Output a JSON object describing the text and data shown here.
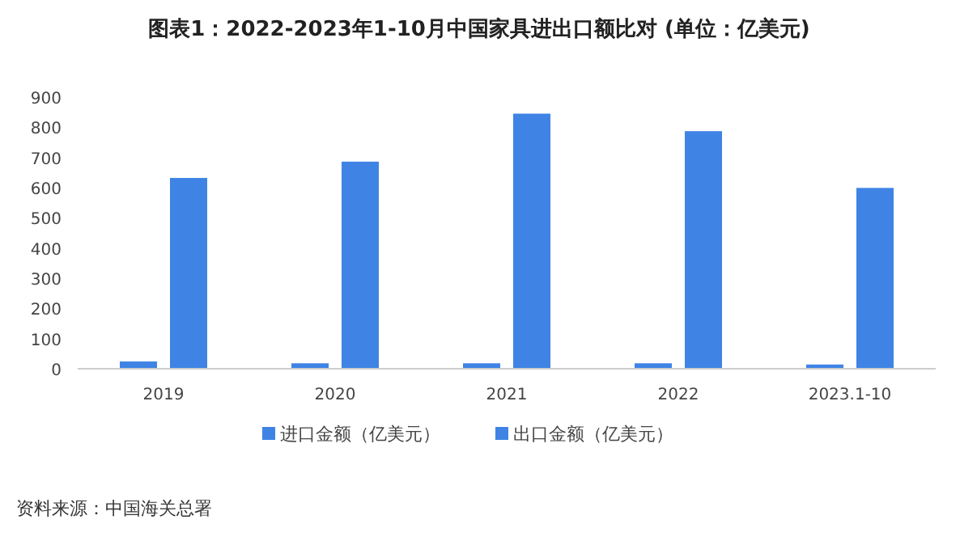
{
  "chart_data": {
    "type": "bar",
    "title": "图表1：2022-2023年1-10月中国家具进出口额比对 (单位：亿美元)",
    "categories": [
      "2019",
      "2020",
      "2021",
      "2022",
      "2023.1-10"
    ],
    "series": [
      {
        "name": "进口金额（亿美元）",
        "color": "#3f84e5",
        "values": [
          24,
          18,
          18,
          18,
          14
        ]
      },
      {
        "name": "出口金额（亿美元）",
        "color": "#3f84e5",
        "values": [
          632,
          686,
          845,
          787,
          599
        ]
      }
    ],
    "ylim": [
      0,
      900
    ],
    "yticks": [
      0,
      100,
      200,
      300,
      400,
      500,
      600,
      700,
      800,
      900
    ],
    "grid": false,
    "legend": "bottom",
    "annotations": [
      "资料来源：中国海关总署"
    ]
  }
}
